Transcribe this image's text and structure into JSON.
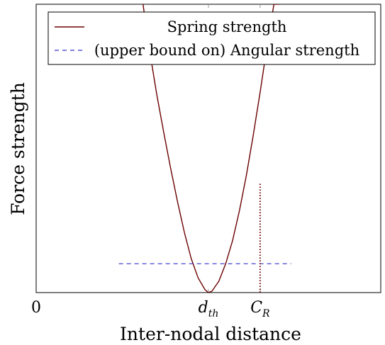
{
  "chart_data": {
    "type": "line",
    "xlabel": "Inter-nodal distance",
    "ylabel": "Force strength",
    "x_ticks": [
      {
        "x": 0,
        "label": "0"
      },
      {
        "x": 5.0,
        "label_main": "d",
        "label_sub": "th"
      },
      {
        "x": 6.5,
        "label_main": "C",
        "label_sub": "R"
      }
    ],
    "xlim": [
      0,
      10
    ],
    "ylim": [
      0,
      10
    ],
    "legend_position": "top",
    "series": [
      {
        "name": "Spring strength",
        "style": "solid",
        "color": "#6b0000",
        "x": [
          3.1,
          3.3,
          3.5,
          3.7,
          3.9,
          4.1,
          4.3,
          4.5,
          4.7,
          4.9,
          5.0,
          5.1,
          5.3,
          5.5,
          5.7,
          5.9,
          6.1,
          6.3,
          6.5,
          6.7,
          6.9,
          7.05
        ],
        "y": [
          10.0,
          8.33,
          6.87,
          5.57,
          4.33,
          3.16,
          2.09,
          1.18,
          0.51,
          0.1,
          0.0,
          0.05,
          0.39,
          1.0,
          1.8,
          2.84,
          4.07,
          5.46,
          6.95,
          8.54,
          10.0,
          10.0
        ]
      },
      {
        "name": "(upper bound on) Angular strength",
        "style": "dashed",
        "color": "#3333cc",
        "x": [
          2.4,
          7.4
        ],
        "y": [
          1.0,
          1.0
        ]
      }
    ],
    "annotations": [
      {
        "type": "vertical-dotted-line",
        "x": 6.5,
        "y_from": 0,
        "y_to": 3.8,
        "color": "#6b0000"
      }
    ]
  }
}
